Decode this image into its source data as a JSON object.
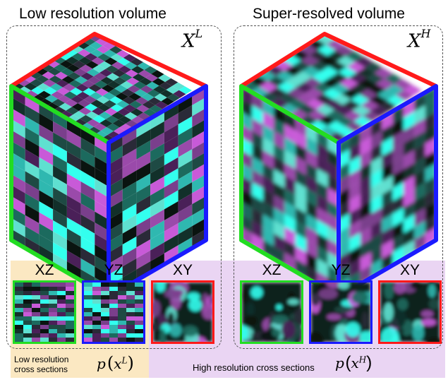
{
  "titles": {
    "left": "Low resolution volume",
    "right": "Super-resolved volume"
  },
  "volume_labels": {
    "left_var": "X",
    "left_sup": "L",
    "right_var": "X",
    "right_sup": "H"
  },
  "section_labels": {
    "xz": "XZ",
    "yz": "YZ",
    "xy": "XY"
  },
  "captions": {
    "low_line1": "Low resolution",
    "low_line2": "cross sections",
    "low_math_p": "p",
    "low_math_x": "x",
    "low_math_sup": "L",
    "high_text": "High resolution cross sections",
    "high_math_p": "p",
    "high_math_x": "x",
    "high_math_sup": "H"
  },
  "colors": {
    "x_face": "#ff1a1a",
    "y_face": "#1a1aff",
    "z_face": "#22dd22",
    "cyan": "#33ffee",
    "magenta": "#c85ad8",
    "low_bg": "#fbe8c2",
    "high_bg": "#ead5f3"
  }
}
